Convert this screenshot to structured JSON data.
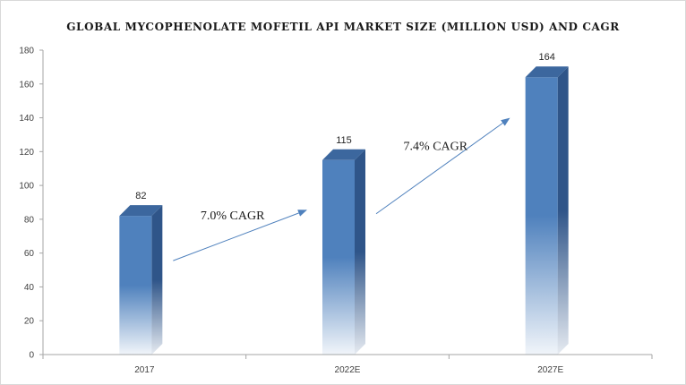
{
  "chart_data": {
    "type": "bar",
    "title": "GLOBAL MYCOPHENOLATE  MOFETIL  API MARKET  SIZE (MILLION  USD) AND CAGR",
    "xlabel": "",
    "ylabel": "",
    "categories": [
      "2017",
      "2022E",
      "2027E"
    ],
    "values": [
      82,
      115,
      164
    ],
    "ylim": [
      0,
      180
    ],
    "yticks": [
      0,
      20,
      40,
      60,
      80,
      100,
      120,
      140,
      160,
      180
    ],
    "grid": false,
    "legend": "none",
    "bar_color": "#4f81bd",
    "annotations": [
      {
        "text": "7.0% CAGR",
        "from": "2017",
        "to": "2022E"
      },
      {
        "text": "7.4% CAGR",
        "from": "2022E",
        "to": "2027E"
      }
    ]
  }
}
